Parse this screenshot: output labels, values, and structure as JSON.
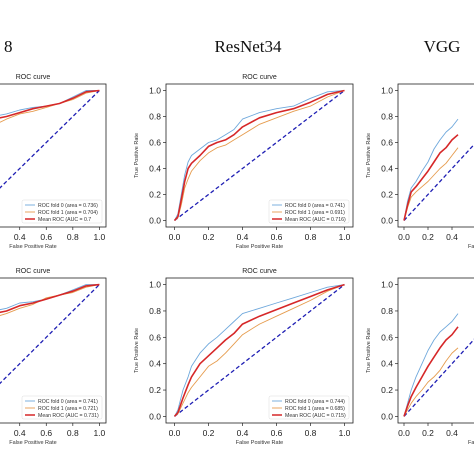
{
  "figure": {
    "column_headers": [
      "8",
      "ResNet34",
      "VGG"
    ]
  },
  "chart_data": [
    {
      "type": "line",
      "title": "ROC curve",
      "xlabel": "False Positive Rate",
      "ylabel": "",
      "xticks": [
        "0.2",
        "0.4",
        "0.6",
        "0.8",
        "1.0"
      ],
      "yticks": [],
      "xlim": [
        0,
        1
      ],
      "ylim": [
        0,
        1
      ],
      "series": [
        {
          "name": "ROC fold 0 (area = 0.736)",
          "color": "#6fa8dc",
          "x": [
            0,
            0.05,
            0.1,
            0.15,
            0.2,
            0.3,
            0.4,
            0.5,
            0.6,
            0.7,
            0.8,
            0.9,
            1.0
          ],
          "y": [
            0.65,
            0.75,
            0.78,
            0.8,
            0.8,
            0.82,
            0.85,
            0.87,
            0.88,
            0.9,
            0.95,
            1.0,
            1.0
          ]
        },
        {
          "name": "ROC fold 1 (area = 0.704)",
          "color": "#e69c4e",
          "x": [
            0,
            0.05,
            0.1,
            0.15,
            0.2,
            0.3,
            0.4,
            0.5,
            0.6,
            0.7,
            0.8,
            0.9,
            1.0
          ],
          "y": [
            0.6,
            0.68,
            0.7,
            0.72,
            0.73,
            0.78,
            0.82,
            0.84,
            0.87,
            0.9,
            0.93,
            0.98,
            1.0
          ]
        },
        {
          "name": "Mean ROC (AUC = 0.7",
          "color": "#d62728",
          "x": [
            0,
            0.05,
            0.1,
            0.15,
            0.2,
            0.3,
            0.4,
            0.5,
            0.6,
            0.7,
            0.8,
            0.9,
            1.0
          ],
          "y": [
            0.62,
            0.7,
            0.74,
            0.77,
            0.78,
            0.8,
            0.83,
            0.86,
            0.88,
            0.9,
            0.94,
            0.99,
            1.0
          ]
        }
      ],
      "legend": "bottom-right"
    },
    {
      "type": "line",
      "title": "ROC curve",
      "xlabel": "False Positive Rate",
      "ylabel": "True Positive Rate",
      "xticks": [
        "0.0",
        "0.2",
        "0.4",
        "0.6",
        "0.8",
        "1.0"
      ],
      "yticks": [
        "0.0",
        "0.2",
        "0.4",
        "0.6",
        "0.8",
        "1.0"
      ],
      "xlim": [
        0,
        1
      ],
      "ylim": [
        0,
        1
      ],
      "series": [
        {
          "name": "ROC fold 0 (area = 0.741)",
          "color": "#6fa8dc",
          "x": [
            0,
            0.02,
            0.04,
            0.06,
            0.08,
            0.1,
            0.15,
            0.2,
            0.25,
            0.3,
            0.35,
            0.4,
            0.5,
            0.6,
            0.7,
            0.8,
            0.9,
            1.0
          ],
          "y": [
            0,
            0.05,
            0.2,
            0.35,
            0.45,
            0.5,
            0.55,
            0.6,
            0.62,
            0.66,
            0.7,
            0.78,
            0.83,
            0.86,
            0.88,
            0.94,
            0.99,
            1.0
          ]
        },
        {
          "name": "ROC fold 1 (area = 0.691)",
          "color": "#e69c4e",
          "x": [
            0,
            0.02,
            0.04,
            0.06,
            0.08,
            0.1,
            0.15,
            0.2,
            0.25,
            0.3,
            0.35,
            0.4,
            0.5,
            0.6,
            0.7,
            0.8,
            0.9,
            1.0
          ],
          "y": [
            0,
            0.02,
            0.12,
            0.25,
            0.32,
            0.38,
            0.46,
            0.52,
            0.56,
            0.58,
            0.62,
            0.66,
            0.74,
            0.79,
            0.84,
            0.88,
            0.95,
            1.0
          ]
        },
        {
          "name": "Mean ROC (AUC = 0.716)",
          "color": "#d62728",
          "x": [
            0,
            0.02,
            0.04,
            0.06,
            0.08,
            0.1,
            0.15,
            0.2,
            0.25,
            0.3,
            0.35,
            0.4,
            0.5,
            0.6,
            0.7,
            0.8,
            0.9,
            1.0
          ],
          "y": [
            0,
            0.03,
            0.16,
            0.3,
            0.4,
            0.44,
            0.5,
            0.57,
            0.6,
            0.62,
            0.66,
            0.72,
            0.79,
            0.83,
            0.86,
            0.91,
            0.97,
            1.0
          ]
        }
      ],
      "legend": "bottom-right"
    },
    {
      "type": "line",
      "title": "",
      "xlabel": "False Po",
      "ylabel": "True Positive Rate",
      "xticks": [
        "0.0",
        "0.2",
        "0.4"
      ],
      "yticks": [
        "0.0",
        "0.2",
        "0.4",
        "0.6",
        "0.8",
        "1.0"
      ],
      "xlim": [
        0,
        1
      ],
      "ylim": [
        0,
        1
      ],
      "series": [
        {
          "name": "",
          "color": "#6fa8dc",
          "x": [
            0,
            0.03,
            0.06,
            0.1,
            0.15,
            0.2,
            0.25,
            0.3,
            0.35,
            0.4,
            0.45
          ],
          "y": [
            0,
            0.15,
            0.25,
            0.3,
            0.38,
            0.45,
            0.55,
            0.62,
            0.68,
            0.72,
            0.78
          ]
        },
        {
          "name": "",
          "color": "#e69c4e",
          "x": [
            0,
            0.03,
            0.06,
            0.1,
            0.15,
            0.2,
            0.25,
            0.3,
            0.35,
            0.4,
            0.45
          ],
          "y": [
            0,
            0.1,
            0.18,
            0.22,
            0.26,
            0.3,
            0.35,
            0.4,
            0.44,
            0.5,
            0.56
          ]
        },
        {
          "name": "",
          "color": "#d62728",
          "x": [
            0,
            0.03,
            0.06,
            0.1,
            0.15,
            0.2,
            0.25,
            0.3,
            0.35,
            0.4,
            0.45
          ],
          "y": [
            0,
            0.12,
            0.22,
            0.26,
            0.32,
            0.38,
            0.45,
            0.52,
            0.56,
            0.62,
            0.66
          ]
        }
      ],
      "legend": "none"
    },
    {
      "type": "line",
      "title": "ROC curve",
      "xlabel": "False Positive Rate",
      "ylabel": "",
      "xticks": [
        "0.2",
        "0.4",
        "0.6",
        "0.8",
        "1.0"
      ],
      "yticks": [],
      "xlim": [
        0,
        1
      ],
      "ylim": [
        0,
        1
      ],
      "series": [
        {
          "name": "ROC fold 0 (area = 0.741)",
          "color": "#6fa8dc",
          "x": [
            0,
            0.05,
            0.1,
            0.15,
            0.2,
            0.3,
            0.4,
            0.5,
            0.6,
            0.7,
            0.8,
            0.9,
            1.0
          ],
          "y": [
            0.62,
            0.7,
            0.75,
            0.78,
            0.8,
            0.82,
            0.86,
            0.87,
            0.89,
            0.92,
            0.96,
            1.0,
            1.0
          ]
        },
        {
          "name": "ROC fold 1 (area = 0.721)",
          "color": "#e69c4e",
          "x": [
            0,
            0.05,
            0.1,
            0.15,
            0.2,
            0.3,
            0.4,
            0.5,
            0.6,
            0.7,
            0.8,
            0.9,
            1.0
          ],
          "y": [
            0.58,
            0.66,
            0.7,
            0.73,
            0.75,
            0.78,
            0.82,
            0.85,
            0.9,
            0.92,
            0.94,
            0.98,
            1.0
          ]
        },
        {
          "name": "Mean ROC (AUC = 0.731)",
          "color": "#d62728",
          "x": [
            0,
            0.05,
            0.1,
            0.15,
            0.2,
            0.3,
            0.4,
            0.5,
            0.6,
            0.7,
            0.8,
            0.9,
            1.0
          ],
          "y": [
            0.6,
            0.68,
            0.72,
            0.76,
            0.78,
            0.8,
            0.84,
            0.86,
            0.89,
            0.92,
            0.95,
            0.99,
            1.0
          ]
        }
      ],
      "legend": "bottom-right"
    },
    {
      "type": "line",
      "title": "ROC curve",
      "xlabel": "False Positive Rate",
      "ylabel": "True Positive Rate",
      "xticks": [
        "0.0",
        "0.2",
        "0.4",
        "0.6",
        "0.8",
        "1.0"
      ],
      "yticks": [
        "0.0",
        "0.2",
        "0.4",
        "0.6",
        "0.8",
        "1.0"
      ],
      "xlim": [
        0,
        1
      ],
      "ylim": [
        0,
        1
      ],
      "series": [
        {
          "name": "ROC fold 0 (area = 0.744)",
          "color": "#6fa8dc",
          "x": [
            0,
            0.02,
            0.05,
            0.08,
            0.1,
            0.15,
            0.2,
            0.25,
            0.3,
            0.35,
            0.4,
            0.5,
            0.6,
            0.7,
            0.8,
            0.9,
            1.0
          ],
          "y": [
            0,
            0.05,
            0.2,
            0.3,
            0.38,
            0.48,
            0.55,
            0.6,
            0.66,
            0.72,
            0.78,
            0.82,
            0.86,
            0.9,
            0.94,
            0.98,
            1.0
          ]
        },
        {
          "name": "ROC fold 1 (area = 0.685)",
          "color": "#e69c4e",
          "x": [
            0,
            0.02,
            0.05,
            0.08,
            0.1,
            0.15,
            0.2,
            0.25,
            0.3,
            0.35,
            0.4,
            0.5,
            0.6,
            0.7,
            0.8,
            0.9,
            1.0
          ],
          "y": [
            0,
            0.02,
            0.1,
            0.18,
            0.22,
            0.3,
            0.38,
            0.42,
            0.48,
            0.55,
            0.62,
            0.7,
            0.76,
            0.82,
            0.88,
            0.95,
            1.0
          ]
        },
        {
          "name": "Mean ROC (AUC = 0.715)",
          "color": "#d62728",
          "x": [
            0,
            0.02,
            0.05,
            0.08,
            0.1,
            0.15,
            0.2,
            0.25,
            0.3,
            0.35,
            0.4,
            0.5,
            0.6,
            0.7,
            0.8,
            0.9,
            1.0
          ],
          "y": [
            0,
            0.03,
            0.14,
            0.24,
            0.3,
            0.4,
            0.46,
            0.52,
            0.58,
            0.63,
            0.7,
            0.76,
            0.81,
            0.86,
            0.91,
            0.96,
            1.0
          ]
        }
      ],
      "legend": "bottom-right"
    },
    {
      "type": "line",
      "title": "",
      "xlabel": "False Po",
      "ylabel": "True Positive Rate",
      "xticks": [
        "0.0",
        "0.2",
        "0.4"
      ],
      "yticks": [
        "0.0",
        "0.2",
        "0.4",
        "0.6",
        "0.8",
        "1.0"
      ],
      "xlim": [
        0,
        1
      ],
      "ylim": [
        0,
        1
      ],
      "series": [
        {
          "name": "",
          "color": "#6fa8dc",
          "x": [
            0,
            0.03,
            0.06,
            0.1,
            0.15,
            0.2,
            0.25,
            0.3,
            0.35,
            0.4,
            0.45
          ],
          "y": [
            0,
            0.1,
            0.2,
            0.3,
            0.4,
            0.5,
            0.58,
            0.64,
            0.68,
            0.72,
            0.78
          ]
        },
        {
          "name": "",
          "color": "#e69c4e",
          "x": [
            0,
            0.03,
            0.06,
            0.1,
            0.15,
            0.2,
            0.25,
            0.3,
            0.35,
            0.4,
            0.45
          ],
          "y": [
            0,
            0.05,
            0.1,
            0.15,
            0.2,
            0.26,
            0.3,
            0.35,
            0.42,
            0.48,
            0.52
          ]
        },
        {
          "name": "",
          "color": "#d62728",
          "x": [
            0,
            0.03,
            0.06,
            0.1,
            0.15,
            0.2,
            0.25,
            0.3,
            0.35,
            0.4,
            0.45
          ],
          "y": [
            0,
            0.08,
            0.15,
            0.22,
            0.3,
            0.38,
            0.45,
            0.52,
            0.58,
            0.62,
            0.68
          ]
        }
      ],
      "legend": "none"
    }
  ]
}
